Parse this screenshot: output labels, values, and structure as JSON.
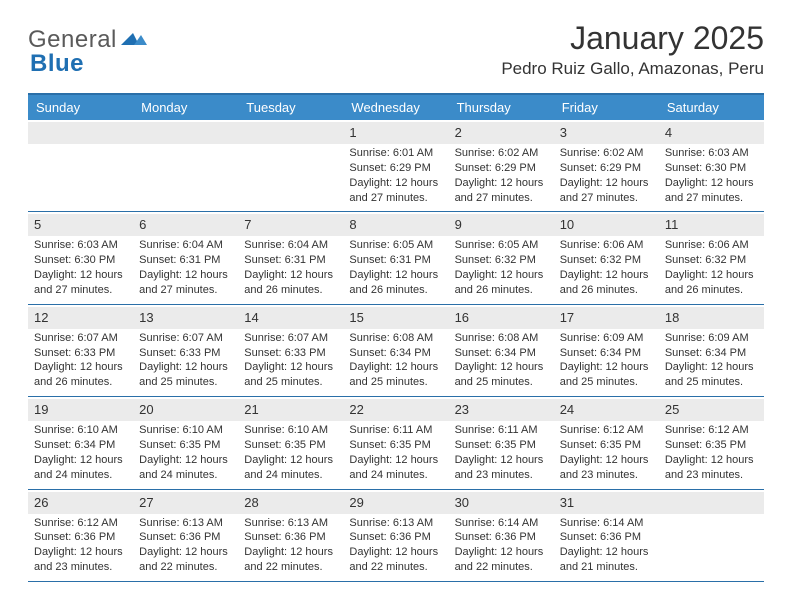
{
  "brand": {
    "word1": "General",
    "word2": "Blue"
  },
  "title": "January 2025",
  "location": "Pedro Ruiz Gallo, Amazonas, Peru",
  "colors": {
    "header_bg": "#3b8bc9",
    "rule": "#2a6fa8",
    "daybar_bg": "#ebebeb",
    "text": "#333333",
    "page_bg": "#ffffff",
    "brand_gray": "#5a5a5a",
    "brand_blue": "#1f6fb2"
  },
  "typography": {
    "title_fontsize": 32,
    "location_fontsize": 17,
    "dow_fontsize": 13,
    "daynum_fontsize": 13,
    "body_fontsize": 11
  },
  "dow": [
    "Sunday",
    "Monday",
    "Tuesday",
    "Wednesday",
    "Thursday",
    "Friday",
    "Saturday"
  ],
  "weeks": [
    [
      {
        "n": "",
        "sr": "",
        "ss": "",
        "dl": ""
      },
      {
        "n": "",
        "sr": "",
        "ss": "",
        "dl": ""
      },
      {
        "n": "",
        "sr": "",
        "ss": "",
        "dl": ""
      },
      {
        "n": "1",
        "sr": "6:01 AM",
        "ss": "6:29 PM",
        "dl": "12 hours and 27 minutes."
      },
      {
        "n": "2",
        "sr": "6:02 AM",
        "ss": "6:29 PM",
        "dl": "12 hours and 27 minutes."
      },
      {
        "n": "3",
        "sr": "6:02 AM",
        "ss": "6:29 PM",
        "dl": "12 hours and 27 minutes."
      },
      {
        "n": "4",
        "sr": "6:03 AM",
        "ss": "6:30 PM",
        "dl": "12 hours and 27 minutes."
      }
    ],
    [
      {
        "n": "5",
        "sr": "6:03 AM",
        "ss": "6:30 PM",
        "dl": "12 hours and 27 minutes."
      },
      {
        "n": "6",
        "sr": "6:04 AM",
        "ss": "6:31 PM",
        "dl": "12 hours and 27 minutes."
      },
      {
        "n": "7",
        "sr": "6:04 AM",
        "ss": "6:31 PM",
        "dl": "12 hours and 26 minutes."
      },
      {
        "n": "8",
        "sr": "6:05 AM",
        "ss": "6:31 PM",
        "dl": "12 hours and 26 minutes."
      },
      {
        "n": "9",
        "sr": "6:05 AM",
        "ss": "6:32 PM",
        "dl": "12 hours and 26 minutes."
      },
      {
        "n": "10",
        "sr": "6:06 AM",
        "ss": "6:32 PM",
        "dl": "12 hours and 26 minutes."
      },
      {
        "n": "11",
        "sr": "6:06 AM",
        "ss": "6:32 PM",
        "dl": "12 hours and 26 minutes."
      }
    ],
    [
      {
        "n": "12",
        "sr": "6:07 AM",
        "ss": "6:33 PM",
        "dl": "12 hours and 26 minutes."
      },
      {
        "n": "13",
        "sr": "6:07 AM",
        "ss": "6:33 PM",
        "dl": "12 hours and 25 minutes."
      },
      {
        "n": "14",
        "sr": "6:07 AM",
        "ss": "6:33 PM",
        "dl": "12 hours and 25 minutes."
      },
      {
        "n": "15",
        "sr": "6:08 AM",
        "ss": "6:34 PM",
        "dl": "12 hours and 25 minutes."
      },
      {
        "n": "16",
        "sr": "6:08 AM",
        "ss": "6:34 PM",
        "dl": "12 hours and 25 minutes."
      },
      {
        "n": "17",
        "sr": "6:09 AM",
        "ss": "6:34 PM",
        "dl": "12 hours and 25 minutes."
      },
      {
        "n": "18",
        "sr": "6:09 AM",
        "ss": "6:34 PM",
        "dl": "12 hours and 25 minutes."
      }
    ],
    [
      {
        "n": "19",
        "sr": "6:10 AM",
        "ss": "6:34 PM",
        "dl": "12 hours and 24 minutes."
      },
      {
        "n": "20",
        "sr": "6:10 AM",
        "ss": "6:35 PM",
        "dl": "12 hours and 24 minutes."
      },
      {
        "n": "21",
        "sr": "6:10 AM",
        "ss": "6:35 PM",
        "dl": "12 hours and 24 minutes."
      },
      {
        "n": "22",
        "sr": "6:11 AM",
        "ss": "6:35 PM",
        "dl": "12 hours and 24 minutes."
      },
      {
        "n": "23",
        "sr": "6:11 AM",
        "ss": "6:35 PM",
        "dl": "12 hours and 23 minutes."
      },
      {
        "n": "24",
        "sr": "6:12 AM",
        "ss": "6:35 PM",
        "dl": "12 hours and 23 minutes."
      },
      {
        "n": "25",
        "sr": "6:12 AM",
        "ss": "6:35 PM",
        "dl": "12 hours and 23 minutes."
      }
    ],
    [
      {
        "n": "26",
        "sr": "6:12 AM",
        "ss": "6:36 PM",
        "dl": "12 hours and 23 minutes."
      },
      {
        "n": "27",
        "sr": "6:13 AM",
        "ss": "6:36 PM",
        "dl": "12 hours and 22 minutes."
      },
      {
        "n": "28",
        "sr": "6:13 AM",
        "ss": "6:36 PM",
        "dl": "12 hours and 22 minutes."
      },
      {
        "n": "29",
        "sr": "6:13 AM",
        "ss": "6:36 PM",
        "dl": "12 hours and 22 minutes."
      },
      {
        "n": "30",
        "sr": "6:14 AM",
        "ss": "6:36 PM",
        "dl": "12 hours and 22 minutes."
      },
      {
        "n": "31",
        "sr": "6:14 AM",
        "ss": "6:36 PM",
        "dl": "12 hours and 21 minutes."
      },
      {
        "n": "",
        "sr": "",
        "ss": "",
        "dl": ""
      }
    ]
  ],
  "labels": {
    "sunrise": "Sunrise:",
    "sunset": "Sunset:",
    "daylight": "Daylight:"
  }
}
